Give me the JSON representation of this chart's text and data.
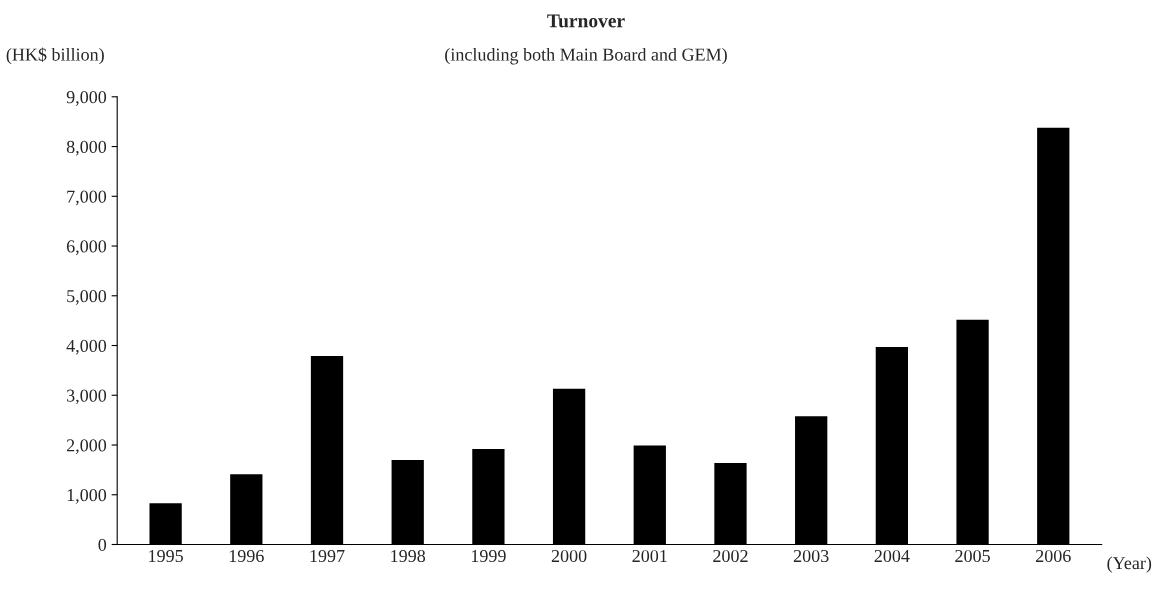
{
  "chart_data": {
    "type": "bar",
    "title": "Turnover",
    "subtitle": "(including both Main Board and GEM)",
    "ylabel": "(HK$ billion)",
    "xlabel": "(Year)",
    "categories": [
      "1995",
      "1996",
      "1997",
      "1998",
      "1999",
      "2000",
      "2001",
      "2002",
      "2003",
      "2004",
      "2005",
      "2006"
    ],
    "values": [
      830,
      1410,
      3790,
      1700,
      1920,
      3130,
      1990,
      1640,
      2580,
      3970,
      4520,
      8380
    ],
    "color": "#000000",
    "ylim": [
      0,
      9000
    ],
    "yticks": [
      0,
      {
        "value": 1000,
        "label": "1,000"
      },
      {
        "value": 2000,
        "label": "2,000"
      },
      {
        "value": 3000,
        "label": "3,000"
      },
      {
        "value": 4000,
        "label": "4,000"
      },
      {
        "value": 5000,
        "label": "5,000"
      },
      {
        "value": 6000,
        "label": "6,000"
      },
      {
        "value": 7000,
        "label": "7,000"
      },
      {
        "value": 8000,
        "label": "8,000"
      },
      {
        "value": 9000,
        "label": "9,000"
      }
    ],
    "grid": false
  }
}
